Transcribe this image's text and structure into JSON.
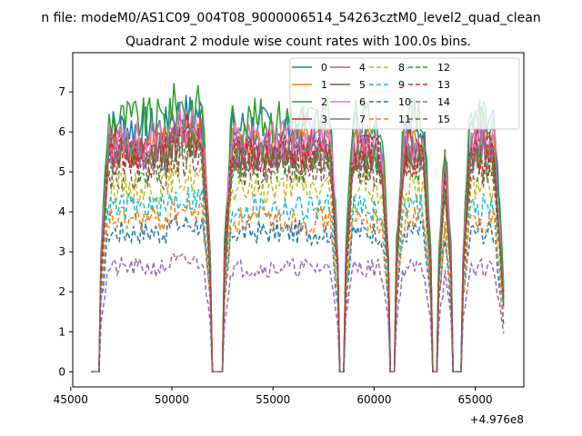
{
  "header": {
    "suptitle": "n file: modeM0/AS1C09_004T08_9000006514_54263cztM0_level2_quad_clean",
    "title": "Quadrant 2 module wise count rates with 100.0s bins."
  },
  "chart_data": {
    "type": "line",
    "title": "Quadrant 2 module wise count rates with 100.0s bins.",
    "xlabel": "",
    "ylabel": "",
    "x_offset_label": "+4.976e8",
    "xlim": [
      45100,
      67400
    ],
    "ylim": [
      -0.38,
      7.98
    ],
    "xticks": [
      45000,
      50000,
      55000,
      60000,
      65000
    ],
    "yticks": [
      0,
      1,
      2,
      3,
      4,
      5,
      6,
      7
    ],
    "grid": false,
    "legend_position": "top-right",
    "x_start": 46000,
    "x_end": 66400,
    "bin_width": 100,
    "gaps": [
      [
        46100,
        46400
      ],
      [
        52000,
        52500
      ],
      [
        58300,
        58500
      ],
      [
        60800,
        61000
      ],
      [
        62900,
        63100
      ],
      [
        63900,
        64300
      ]
    ],
    "series": [
      {
        "name": "0",
        "color": "#1f77b4",
        "dash": "solid",
        "level": 6.1
      },
      {
        "name": "1",
        "color": "#ff7f0e",
        "dash": "solid",
        "level": 5.7
      },
      {
        "name": "2",
        "color": "#2ca02c",
        "dash": "solid",
        "level": 6.3
      },
      {
        "name": "3",
        "color": "#d62728",
        "dash": "solid",
        "level": 5.6
      },
      {
        "name": "4",
        "color": "#9467bd",
        "dash": "solid",
        "level": 5.5
      },
      {
        "name": "5",
        "color": "#8c564b",
        "dash": "solid",
        "level": 5.4
      },
      {
        "name": "6",
        "color": "#e377c2",
        "dash": "solid",
        "level": 5.8
      },
      {
        "name": "7",
        "color": "#7f7f7f",
        "dash": "solid",
        "level": 5.5
      },
      {
        "name": "8",
        "color": "#bcbd22",
        "dash": "dashed",
        "level": 4.6
      },
      {
        "name": "9",
        "color": "#17becf",
        "dash": "dashed",
        "level": 4.1
      },
      {
        "name": "10",
        "color": "#1f77b4",
        "dash": "dashed",
        "level": 3.5
      },
      {
        "name": "11",
        "color": "#ff7f0e",
        "dash": "dashed",
        "level": 3.8
      },
      {
        "name": "12",
        "color": "#2ca02c",
        "dash": "dashed",
        "level": 5.2
      },
      {
        "name": "13",
        "color": "#d62728",
        "dash": "dashed",
        "level": 5.4
      },
      {
        "name": "14",
        "color": "#9467bd",
        "dash": "dashed",
        "level": 2.6
      },
      {
        "name": "15",
        "color": "#8c564b",
        "dash": "dashed",
        "level": 5.0
      }
    ]
  }
}
